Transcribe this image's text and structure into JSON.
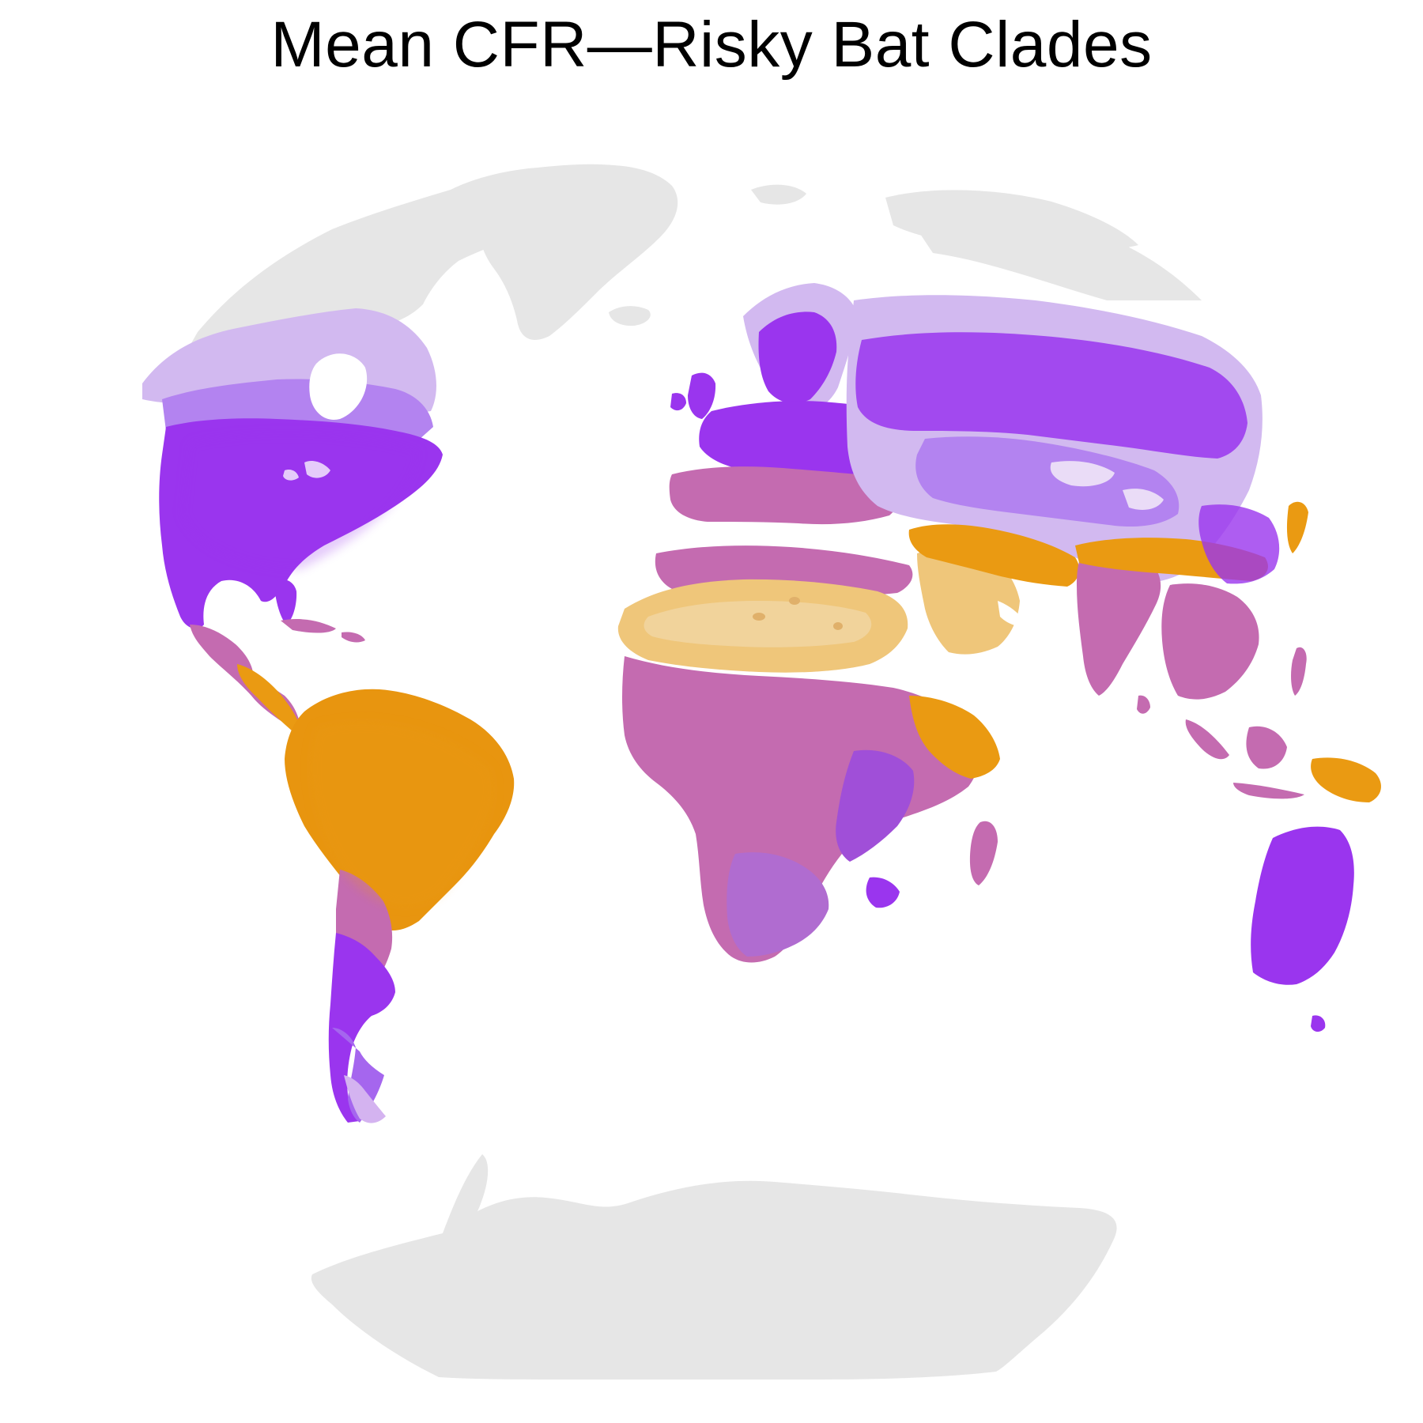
{
  "title": "Mean CFR—Risky Bat Clades",
  "map": {
    "projection": "globe-like world projection (Eckert/equal-earth style)",
    "basemap_color": "#e6e6e6",
    "ocean_color": "#ffffff",
    "palette": {
      "low_cfr": "#9a35ee",
      "mid_cfr": "#c46bb0",
      "high_cfr": "#ea9a12",
      "desert_high": "#efc67a"
    },
    "regions": [
      {
        "name": "North America",
        "level": "low"
      },
      {
        "name": "Central America",
        "level": "mid"
      },
      {
        "name": "South America (Amazon)",
        "level": "high"
      },
      {
        "name": "Southern South America",
        "level": "low"
      },
      {
        "name": "Europe",
        "level": "low"
      },
      {
        "name": "Mediterranean / Southern Europe",
        "level": "mid"
      },
      {
        "name": "Sahara / Arabia",
        "level": "high"
      },
      {
        "name": "Sub-Saharan Africa",
        "level": "mid"
      },
      {
        "name": "Northern & Central Asia",
        "level": "low"
      },
      {
        "name": "South & Southeast Asia",
        "level": "mid"
      },
      {
        "name": "New Guinea",
        "level": "high"
      },
      {
        "name": "Australia",
        "level": "low"
      },
      {
        "name": "Greenland",
        "level": "none"
      },
      {
        "name": "Antarctica",
        "level": "none"
      }
    ]
  }
}
